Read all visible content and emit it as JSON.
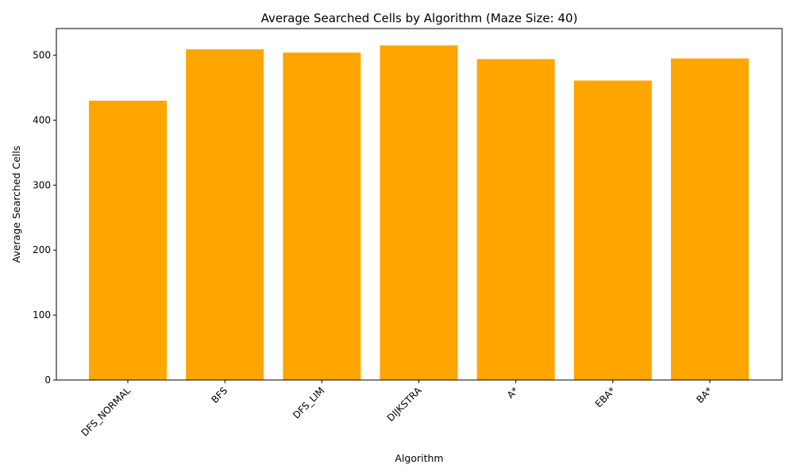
{
  "chart_data": {
    "type": "bar",
    "title": "Average Searched Cells by Algorithm (Maze Size: 40)",
    "xlabel": "Algorithm",
    "ylabel": "Average Searched Cells",
    "categories": [
      "DFS_NORMAL",
      "BFS",
      "DFS_LIM",
      "DIJKSTRA",
      "A*",
      "EBA*",
      "BA*"
    ],
    "values": [
      430,
      509,
      504,
      515,
      494,
      461,
      495
    ],
    "ylim": [
      0,
      541
    ],
    "yticks": [
      0,
      100,
      200,
      300,
      400,
      500
    ],
    "bar_color": "#FFA500",
    "grid": false,
    "x_tick_rotation": 45
  }
}
